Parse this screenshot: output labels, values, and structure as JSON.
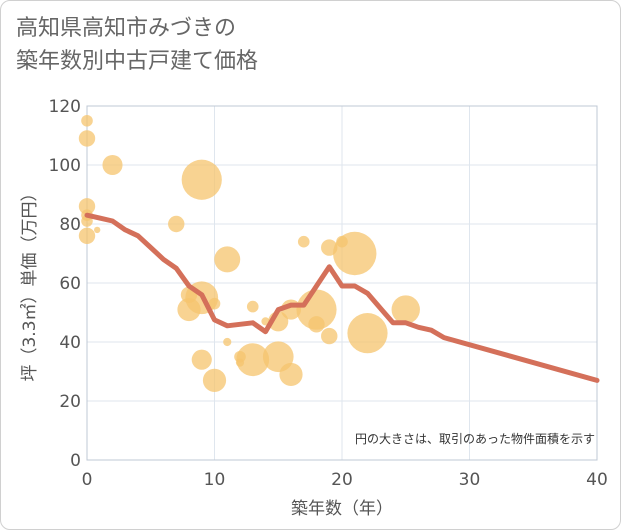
{
  "title_lines": [
    "高知県高知市みづきの",
    "築年数別中古戸建て価格"
  ],
  "chart_data": {
    "type": "scatter",
    "title": "高知県高知市みづきの築年数別中古戸建て価格",
    "xlabel": "築年数（年）",
    "ylabel": "坪（3.3㎡）単価（万円）",
    "xlim": [
      0,
      40
    ],
    "ylim": [
      0,
      120
    ],
    "xticks": [
      0,
      10,
      20,
      30,
      40
    ],
    "yticks": [
      0,
      20,
      40,
      60,
      80,
      100,
      120
    ],
    "grid": true,
    "note": "円の大きさは、取引のあった物件面積を示す",
    "colors": {
      "bubble": "#f5c46e",
      "trend": "#d4705a",
      "grid": "#dfe6ee"
    },
    "bubbles": [
      {
        "x": 0,
        "y": 115,
        "s": 1
      },
      {
        "x": 0,
        "y": 109,
        "s": 2
      },
      {
        "x": 0,
        "y": 86,
        "s": 2
      },
      {
        "x": 0,
        "y": 83,
        "s": 1
      },
      {
        "x": 0,
        "y": 81,
        "s": 1
      },
      {
        "x": 0,
        "y": 76,
        "s": 2
      },
      {
        "x": 0.8,
        "y": 78,
        "s": 0.3
      },
      {
        "x": 2,
        "y": 100,
        "s": 3
      },
      {
        "x": 7,
        "y": 80,
        "s": 2
      },
      {
        "x": 8,
        "y": 51,
        "s": 4
      },
      {
        "x": 8,
        "y": 56,
        "s": 2
      },
      {
        "x": 9,
        "y": 95,
        "s": 12
      },
      {
        "x": 9,
        "y": 55,
        "s": 8
      },
      {
        "x": 9,
        "y": 34,
        "s": 3
      },
      {
        "x": 10,
        "y": 53,
        "s": 1
      },
      {
        "x": 10,
        "y": 27,
        "s": 4
      },
      {
        "x": 11,
        "y": 68,
        "s": 5
      },
      {
        "x": 11,
        "y": 40,
        "s": 0.5
      },
      {
        "x": 12,
        "y": 35,
        "s": 1
      },
      {
        "x": 12,
        "y": 33,
        "s": 0.5
      },
      {
        "x": 13,
        "y": 52,
        "s": 1
      },
      {
        "x": 13,
        "y": 34,
        "s": 8
      },
      {
        "x": 14,
        "y": 47,
        "s": 0.5
      },
      {
        "x": 15,
        "y": 47,
        "s": 3
      },
      {
        "x": 15,
        "y": 35,
        "s": 7
      },
      {
        "x": 16,
        "y": 51,
        "s": 3
      },
      {
        "x": 16,
        "y": 29,
        "s": 4
      },
      {
        "x": 17,
        "y": 74,
        "s": 1
      },
      {
        "x": 18,
        "y": 46,
        "s": 2
      },
      {
        "x": 18,
        "y": 51,
        "s": 12
      },
      {
        "x": 19,
        "y": 72,
        "s": 2
      },
      {
        "x": 19,
        "y": 42,
        "s": 2
      },
      {
        "x": 20,
        "y": 74,
        "s": 1
      },
      {
        "x": 21,
        "y": 70,
        "s": 14
      },
      {
        "x": 22,
        "y": 43,
        "s": 12
      },
      {
        "x": 25,
        "y": 51,
        "s": 6
      }
    ],
    "trend": {
      "x": [
        0,
        1,
        2,
        3,
        4,
        5,
        6,
        7,
        8,
        9,
        10,
        11,
        12,
        13,
        14,
        15,
        16,
        17,
        18,
        19,
        20,
        21,
        22,
        23,
        24,
        25,
        26,
        27,
        28,
        40
      ],
      "y": [
        83,
        82,
        81,
        78,
        76,
        72,
        68,
        65,
        59,
        56,
        47.5,
        45.5,
        46,
        46.5,
        43.5,
        51,
        52.5,
        52.5,
        59,
        65.5,
        59,
        59,
        56.5,
        51.5,
        46.5,
        46.5,
        45,
        44,
        41.5,
        27
      ]
    }
  }
}
